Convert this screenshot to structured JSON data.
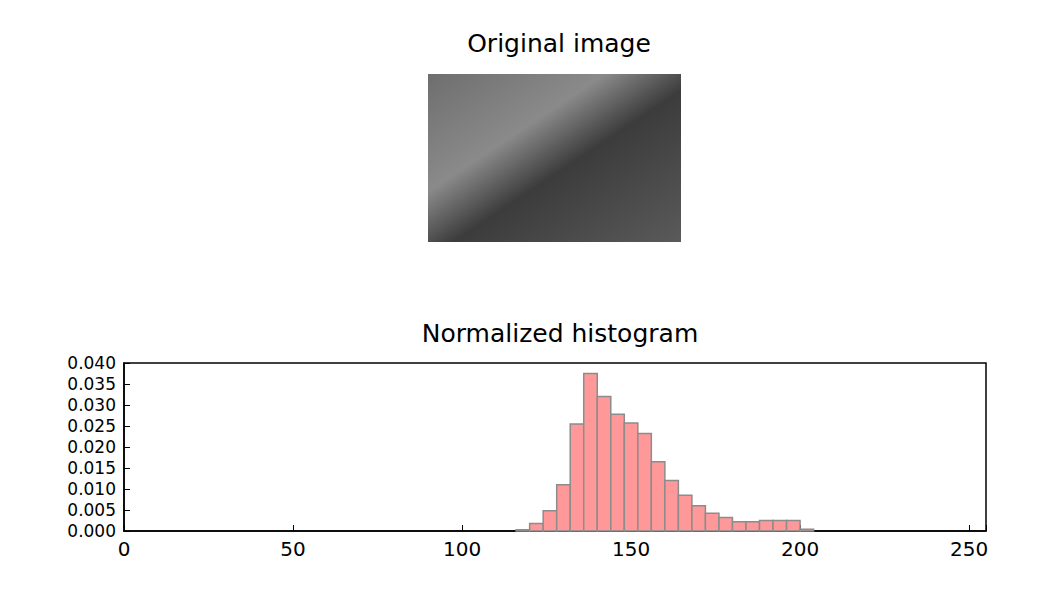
{
  "image": {
    "title": "Original image"
  },
  "chart_data": {
    "type": "histogram",
    "title": "Normalized histogram",
    "bins": [
      116,
      120,
      124,
      128,
      132,
      136,
      140,
      144,
      148,
      152,
      156,
      160,
      164,
      168,
      172,
      176,
      180,
      184,
      188,
      192,
      196,
      200,
      204
    ],
    "values": [
      0.0003,
      0.0018,
      0.0048,
      0.011,
      0.0255,
      0.0375,
      0.032,
      0.0278,
      0.0257,
      0.0232,
      0.0165,
      0.012,
      0.0085,
      0.006,
      0.0042,
      0.0032,
      0.0022,
      0.0022,
      0.0025,
      0.0025,
      0.0025,
      0.0004
    ],
    "color": "#ff9999",
    "xlim": [
      0,
      255
    ],
    "xticks": [
      0,
      50,
      100,
      150,
      200,
      250
    ],
    "ylim": [
      0,
      0.04
    ],
    "yticks": [
      {
        "value": 0,
        "label": "0.000"
      },
      {
        "value": 0.005,
        "label": "0.005"
      },
      {
        "value": 0.01,
        "label": "0.010"
      },
      {
        "value": 0.015,
        "label": "0.015"
      },
      {
        "value": 0.02,
        "label": "0.020"
      },
      {
        "value": 0.025,
        "label": "0.025"
      },
      {
        "value": 0.03,
        "label": "0.030"
      },
      {
        "value": 0.035,
        "label": "0.035"
      },
      {
        "value": 0.04,
        "label": "0.040"
      }
    ],
    "grid": false
  }
}
